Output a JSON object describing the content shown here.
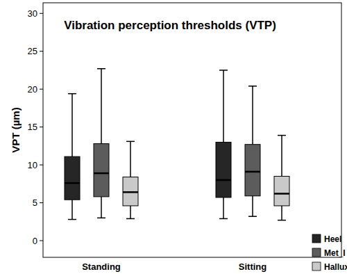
{
  "chart_data": {
    "type": "box",
    "title": "Vibration perception thresholds (VTP)",
    "y_label": "VPT (µm)",
    "categories": [
      "Standing",
      "Sitting"
    ],
    "series": [
      {
        "name": "Heel",
        "color": "#262626",
        "values": [
          7.6,
          8.0
        ],
        "min": [
          2.8,
          2.9
        ],
        "q1": [
          5.4,
          5.7
        ],
        "q3": [
          11.1,
          13.0
        ],
        "max": [
          19.4,
          22.5
        ]
      },
      {
        "name": "Met_I",
        "color": "#5c5c5c",
        "values": [
          8.9,
          9.1
        ],
        "min": [
          3.0,
          3.2
        ],
        "q1": [
          5.8,
          5.9
        ],
        "q3": [
          12.8,
          12.7
        ],
        "max": [
          22.7,
          20.4
        ]
      },
      {
        "name": "Hallux",
        "color": "#c9c9c9",
        "values": [
          6.4,
          6.2
        ],
        "min": [
          2.9,
          2.7
        ],
        "q1": [
          4.6,
          4.6
        ],
        "q3": [
          8.4,
          8.5
        ],
        "max": [
          13.1,
          13.9
        ]
      }
    ],
    "ylim": [
      -2.2,
      31.4
    ],
    "yticks": [
      0,
      5,
      10,
      15,
      20,
      25,
      30
    ],
    "grid": false,
    "legend": "lower right"
  }
}
